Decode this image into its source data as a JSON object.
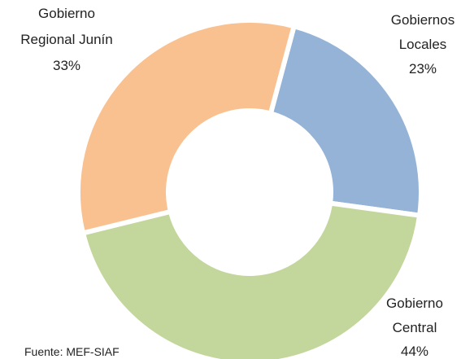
{
  "chart_data": {
    "type": "donut",
    "categories": [
      "Gobiernos\nLocales",
      "Gobierno\nCentral",
      "Gobierno\nRegional Junín"
    ],
    "values": [
      23,
      44,
      33
    ],
    "value_labels": [
      "23%",
      "44%",
      "33%"
    ],
    "colors": [
      "#95b3d7",
      "#c3d69b",
      "#f9c090"
    ],
    "source": "Fuente: MEF-SIAF"
  }
}
